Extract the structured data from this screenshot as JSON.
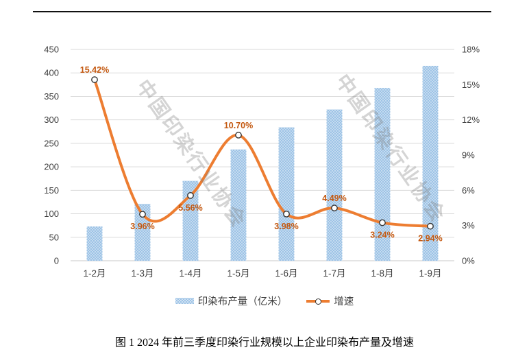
{
  "watermark": {
    "text": "中国印染行业协会"
  },
  "chart_data": {
    "type": "bar+line combo",
    "title": "图 1 2024 年前三季度印染行业规模以上企业印染布产量及增速",
    "categories": [
      "1-2月",
      "1-3月",
      "1-4月",
      "1-5月",
      "1-6月",
      "1-7月",
      "1-8月",
      "1-9月"
    ],
    "series": [
      {
        "name": "印染布产量（亿米）",
        "type": "bar",
        "axis": "left",
        "values": [
          73,
          121,
          170,
          237,
          284,
          322,
          368,
          415
        ]
      },
      {
        "name": "增速",
        "type": "line",
        "axis": "right",
        "values": [
          15.42,
          3.96,
          5.56,
          10.7,
          3.98,
          4.49,
          3.24,
          2.94
        ],
        "point_labels": [
          "15.42%",
          "3.96%",
          "5.56%",
          "10.70%",
          "3.98%",
          "4.49%",
          "3.24%",
          "2.94%"
        ],
        "label_side": [
          "above",
          "below",
          "below",
          "above",
          "below",
          "above",
          "below",
          "below"
        ]
      }
    ],
    "left_axis": {
      "min": 0,
      "max": 450,
      "step": 50,
      "ticks": [
        "0",
        "50",
        "100",
        "150",
        "200",
        "250",
        "300",
        "350",
        "400",
        "450"
      ]
    },
    "right_axis": {
      "min": 0,
      "max": 18,
      "step": 3,
      "ticks": [
        "0%",
        "3%",
        "6%",
        "9%",
        "12%",
        "15%",
        "18%"
      ]
    },
    "grid": true,
    "legend_position": "bottom"
  },
  "colors": {
    "bar_fill": "#9DC3E6",
    "line": "#ED7D31",
    "data_label": "#C45911",
    "grid": "#D9D9D9",
    "axis_line": "#C9C9C9",
    "axis_text": "#404040",
    "marker_stroke": "#333333",
    "watermark": "#7D7D7D"
  }
}
